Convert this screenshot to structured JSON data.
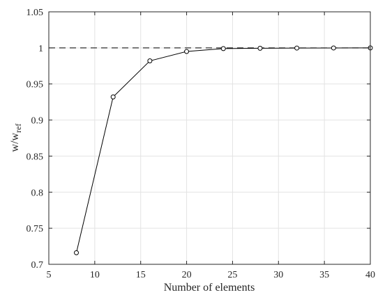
{
  "chart_data": {
    "type": "line",
    "title": "",
    "xlabel": "Number of elements",
    "ylabel": {
      "base": "w/w",
      "subscript": "ref"
    },
    "xlim": [
      5,
      40
    ],
    "ylim": [
      0.7,
      1.05
    ],
    "xticks": [
      5,
      10,
      15,
      20,
      25,
      30,
      35,
      40
    ],
    "yticks": [
      0.7,
      0.75,
      0.8,
      0.85,
      0.9,
      0.95,
      1,
      1.05
    ],
    "xtick_labels": [
      "5",
      "10",
      "15",
      "20",
      "25",
      "30",
      "35",
      "40"
    ],
    "ytick_labels": [
      "0.7",
      "0.75",
      "0.8",
      "0.85",
      "0.9",
      "0.95",
      "1",
      "1.05"
    ],
    "grid": true,
    "series": [
      {
        "x": [
          8,
          12,
          16,
          20,
          24,
          28,
          32,
          36,
          40
        ],
        "y": [
          0.716,
          0.932,
          0.982,
          0.995,
          0.999,
          0.9995,
          0.9998,
          0.9999,
          1.0
        ],
        "line_style": "solid",
        "marker": "circle",
        "color": "#000000"
      }
    ],
    "reference_line": {
      "y": 1,
      "line_style": "dashed",
      "color": "#000000"
    },
    "colors": {
      "axis": "#262626",
      "grid": "#e3e3e3",
      "background": "#ffffff"
    }
  }
}
